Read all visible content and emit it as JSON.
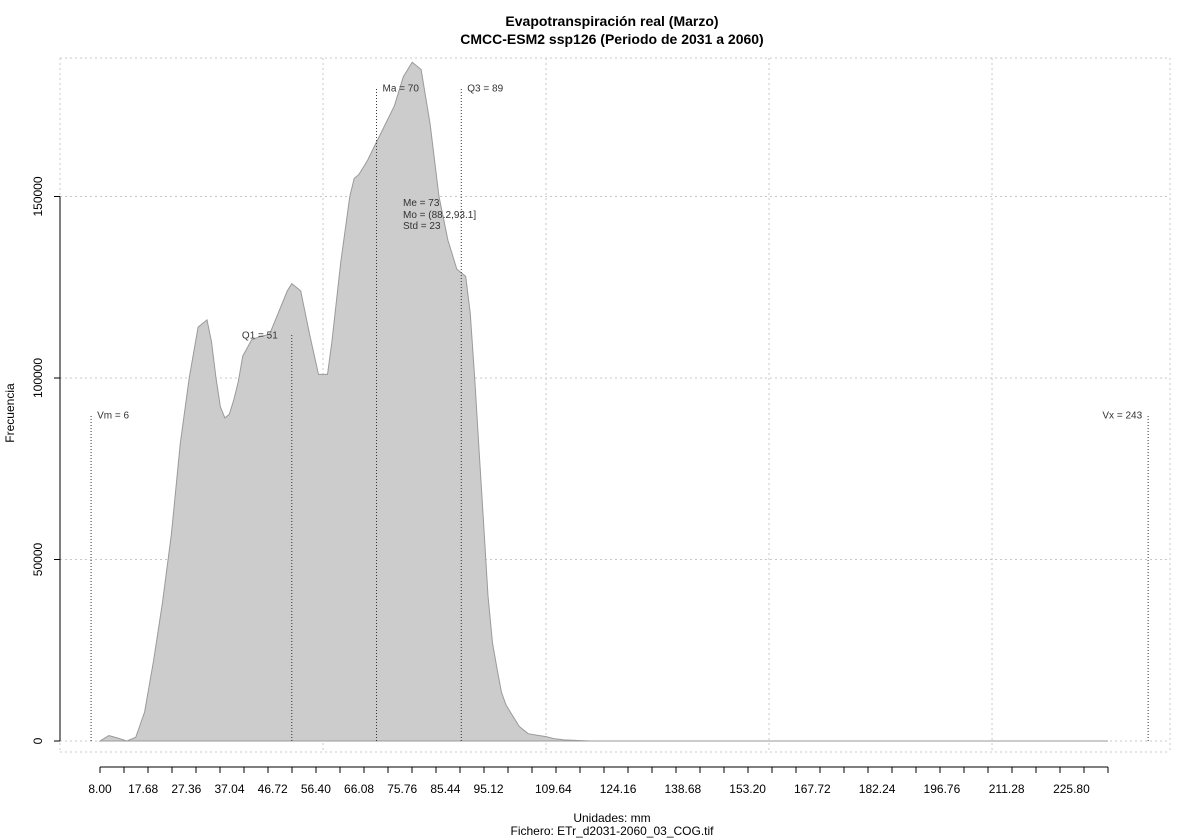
{
  "chart_data": {
    "type": "area",
    "title": "Evapotranspiración real (Marzo)",
    "subtitle": "CMCC-ESM2 ssp126 (Periodo de 2031 a 2060)",
    "xlabel": "Unidades: mm",
    "ylabel": "Frecuencia",
    "caption": "Fichero: ETr_d2031-2060_03_COG.tif",
    "xlim": [
      8,
      234
    ],
    "ylim": [
      0,
      185000
    ],
    "x_tick_values": [
      8.0,
      17.68,
      27.36,
      37.04,
      46.72,
      56.4,
      66.08,
      75.76,
      85.44,
      95.12,
      109.64,
      124.16,
      138.68,
      153.2,
      167.72,
      182.24,
      196.76,
      211.28,
      225.8
    ],
    "x_tick_labels": [
      "8.00",
      "17.68",
      "27.36",
      "37.04",
      "46.72",
      "56.40",
      "66.08",
      "75.76",
      "85.44",
      "95.12",
      "109.64",
      "124.16",
      "138.68",
      "153.20",
      "167.72",
      "182.24",
      "196.76",
      "211.28",
      "225.80"
    ],
    "y_ticks": [
      0,
      50000,
      100000,
      150000
    ],
    "y_tick_labels": [
      "0",
      "50000",
      "100000",
      "150000"
    ],
    "grid": true,
    "fill_color": "#cccccc",
    "line_color": "#9a9a9a",
    "series": [
      {
        "x": [
          8,
          10,
          12,
          14,
          16,
          18,
          20,
          22,
          24,
          26,
          28,
          30,
          32,
          33,
          34,
          35,
          36,
          37,
          38,
          39,
          40,
          42,
          44,
          46,
          48,
          50,
          51,
          53,
          55,
          57,
          59,
          60,
          62,
          64,
          65,
          66,
          67,
          68,
          70,
          72,
          74,
          76,
          78,
          80,
          82,
          84,
          86,
          88,
          89,
          90,
          91,
          92,
          93,
          94,
          95,
          96,
          97,
          98,
          99,
          100,
          102,
          104,
          106,
          108,
          110,
          112,
          114,
          116,
          118,
          120,
          122,
          124,
          126,
          128,
          130,
          132,
          134,
          136,
          140,
          146,
          160,
          180,
          200,
          220,
          234
        ],
        "y": [
          0,
          1500,
          800,
          0,
          1000,
          8000,
          22000,
          38000,
          57000,
          82000,
          100000,
          114000,
          116000,
          110000,
          100000,
          92000,
          89000,
          90000,
          94000,
          99000,
          106000,
          110500,
          111500,
          112000,
          118000,
          124000,
          126000,
          124000,
          112000,
          101000,
          101000,
          110000,
          132000,
          150000,
          155000,
          156000,
          158000,
          160000,
          165000,
          170000,
          175000,
          183000,
          187000,
          185000,
          170000,
          150000,
          138000,
          130000,
          129000,
          128000,
          118000,
          100000,
          80000,
          60000,
          40000,
          27000,
          20000,
          13500,
          10000,
          8000,
          4000,
          2000,
          1600,
          1200,
          600,
          300,
          200,
          100,
          0,
          0,
          0,
          0,
          0,
          0,
          0,
          0,
          0,
          0,
          0,
          0,
          0,
          0,
          0,
          0,
          0
        ]
      }
    ],
    "vlines": [
      {
        "label": "Vm = 6",
        "x": 6,
        "y_top": 90000
      },
      {
        "label": "Q1 = 51",
        "x": 51,
        "y_top": 112000
      },
      {
        "label": "Ma = 70",
        "x": 70,
        "y_top": 180000
      },
      {
        "label": "Q3 = 89",
        "x": 89,
        "y_top": 180000
      },
      {
        "label": "Vx = 243",
        "x": 243,
        "y_top": 90000
      }
    ],
    "stats_block": [
      "Me = 73",
      "Mo = (88.2,93.1]",
      "Std = 23"
    ]
  }
}
